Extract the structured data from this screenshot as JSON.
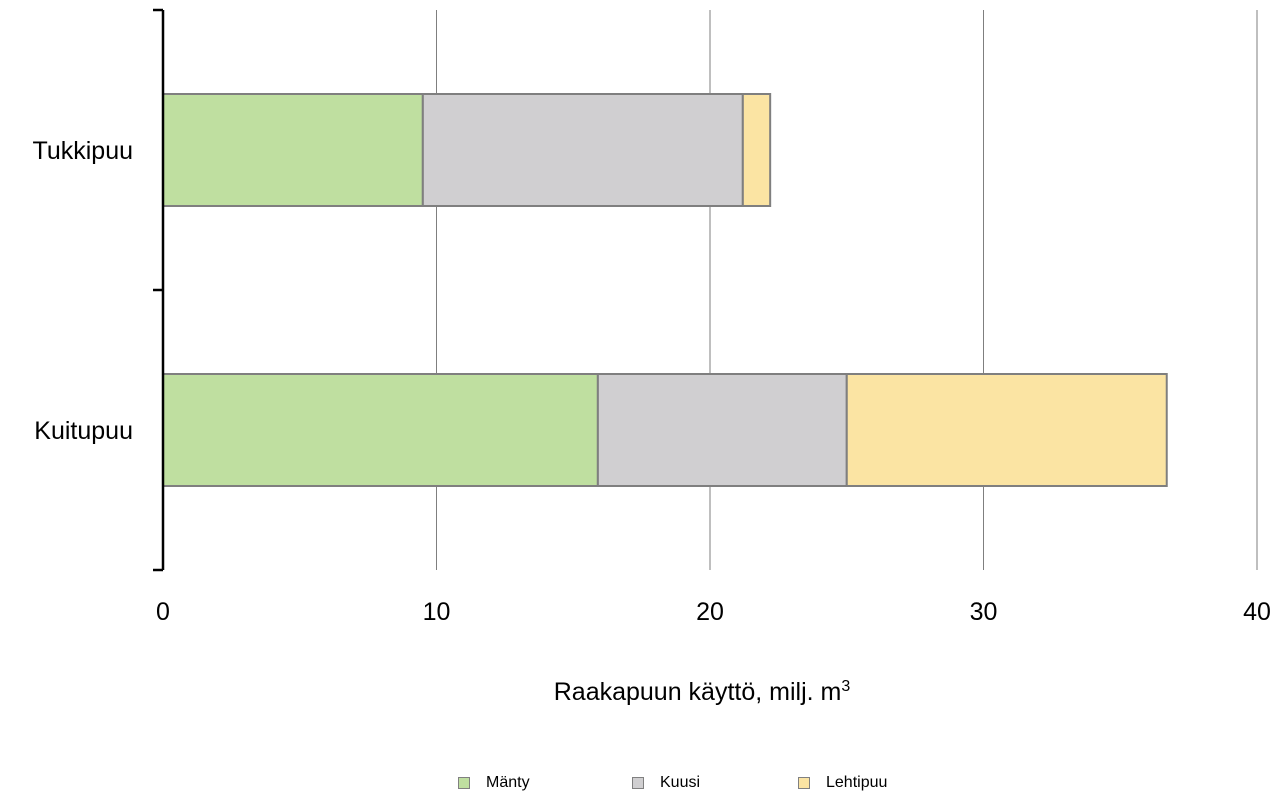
{
  "chart_data": {
    "type": "bar",
    "orientation": "horizontal",
    "stacked": true,
    "categories": [
      "Tukkipuu",
      "Kuitupuu"
    ],
    "series": [
      {
        "name": "Mänty",
        "values": [
          9.5,
          15.9
        ],
        "color": "#bfdfa0"
      },
      {
        "name": "Kuusi",
        "values": [
          11.7,
          9.1
        ],
        "color": "#d0cfd1"
      },
      {
        "name": "Lehtipuu",
        "values": [
          1.0,
          11.7
        ],
        "color": "#fbe4a3"
      }
    ],
    "xlim": [
      0,
      40
    ],
    "xticks": [
      "0",
      "10",
      "20",
      "30",
      "40"
    ],
    "xlabel": "Raakapuun käyttö, milj. m",
    "xlabel_superscript": "3",
    "grid": "vertical",
    "legend_position": "bottom"
  }
}
